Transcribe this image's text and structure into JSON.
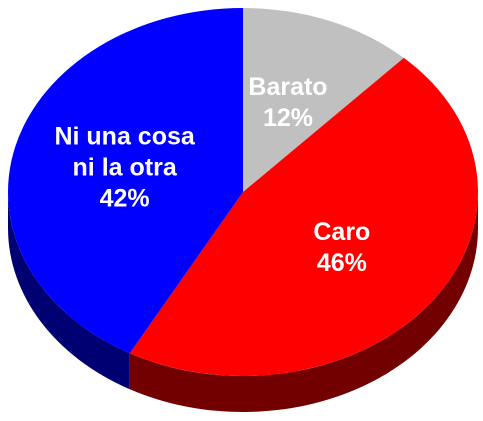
{
  "chart_data": {
    "type": "pie",
    "categories": [
      "Barato",
      "Caro",
      "Ni una cosa ni la otra"
    ],
    "values": [
      12,
      46,
      42
    ],
    "value_labels": [
      "12%",
      "46%",
      "42%"
    ],
    "colors": [
      "#c0c0c0",
      "#ff0000",
      "#0000ff"
    ]
  }
}
